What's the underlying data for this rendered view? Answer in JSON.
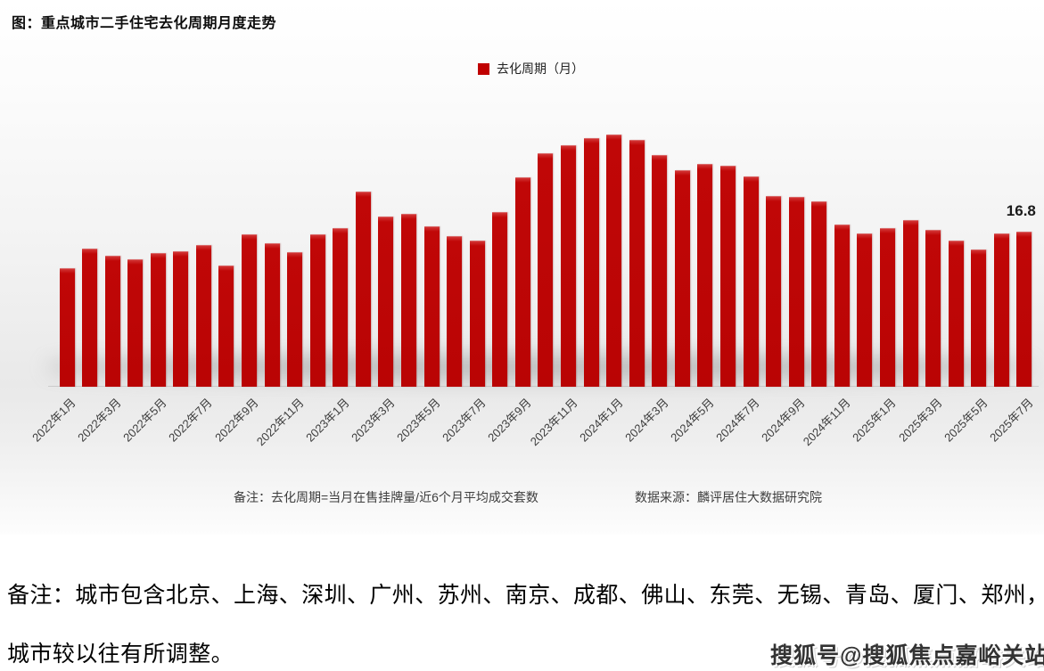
{
  "title": "图：重点城市二手住宅去化周期月度走势",
  "legend": {
    "label": "去化周期（月）",
    "color": "#c00000"
  },
  "chart_data": {
    "type": "bar",
    "title": "重点城市二手住宅去化周期月度走势",
    "series_name": "去化周期（月）",
    "bar_color": "#c00707",
    "ylim": [
      0,
      28
    ],
    "grid": false,
    "legend_position": "top-center",
    "x_tick_every": 2,
    "last_value_label": "16.8",
    "categories": [
      "2022年1月",
      "2022年2月",
      "2022年3月",
      "2022年4月",
      "2022年5月",
      "2022年6月",
      "2022年7月",
      "2022年8月",
      "2022年9月",
      "2022年10月",
      "2022年11月",
      "2022年12月",
      "2023年1月",
      "2023年2月",
      "2023年3月",
      "2023年4月",
      "2023年5月",
      "2023年6月",
      "2023年7月",
      "2023年8月",
      "2023年9月",
      "2023年10月",
      "2023年11月",
      "2023年12月",
      "2024年1月",
      "2024年2月",
      "2024年3月",
      "2024年4月",
      "2024年5月",
      "2024年6月",
      "2024年7月",
      "2024年8月",
      "2024年9月",
      "2024年10月",
      "2024年11月",
      "2024年12月",
      "2025年1月",
      "2025年2月",
      "2025年3月",
      "2025年4月",
      "2025年5月",
      "2025年6月",
      "2025年7月"
    ],
    "values": [
      12.8,
      15.0,
      14.2,
      13.8,
      14.5,
      14.7,
      15.3,
      13.1,
      16.5,
      15.5,
      14.6,
      16.5,
      17.2,
      21.2,
      18.4,
      18.7,
      17.4,
      16.3,
      15.8,
      18.9,
      22.7,
      25.3,
      26.2,
      27.0,
      27.4,
      26.8,
      25.1,
      23.5,
      24.2,
      24.0,
      22.8,
      20.7,
      20.6,
      20.1,
      17.6,
      16.6,
      17.2,
      18.1,
      17.0,
      15.8,
      14.9,
      16.6,
      16.8
    ]
  },
  "footnote": {
    "note": "备注：去化周期=当月在售挂牌量/近6个月平均成交套数",
    "source": "数据来源：麟评居住大数据研究院"
  },
  "remarks": {
    "line1": "备注：城市包含北京、上海、深圳、广州、苏州、南京、成都、佛山、东莞、无锡、青岛、厦门、郑州，",
    "line2": "城市较以往有所调整。"
  },
  "watermark": "搜狐号@搜狐焦点嘉峪关站"
}
